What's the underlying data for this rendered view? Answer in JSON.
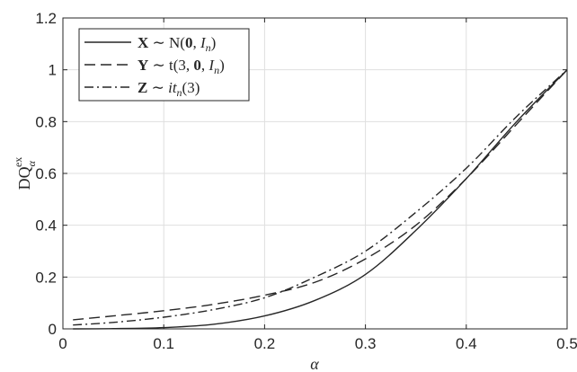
{
  "chart_data": {
    "type": "line",
    "xlabel": "α",
    "ylabel": "DQ",
    "ylabel_sub": "α",
    "ylabel_sup": "ex",
    "xlim": [
      0,
      0.5
    ],
    "ylim": [
      0,
      1.2
    ],
    "xticks": [
      0,
      0.1,
      0.2,
      0.3,
      0.4,
      0.5
    ],
    "xtick_labels": [
      "0",
      "0.1",
      "0.2",
      "0.3",
      "0.4",
      "0.5"
    ],
    "yticks": [
      0,
      0.2,
      0.4,
      0.6,
      0.8,
      1,
      1.2
    ],
    "ytick_labels": [
      "0",
      "0.2",
      "0.4",
      "0.6",
      "0.8",
      "1",
      "1.2"
    ],
    "grid": true,
    "legend_position": "top-left",
    "x": [
      0.01,
      0.05,
      0.1,
      0.15,
      0.2,
      0.25,
      0.3,
      0.35,
      0.4,
      0.45,
      0.5
    ],
    "series": [
      {
        "name": "X ~ N(0, I_n)",
        "style": "solid",
        "label_parts": [
          {
            "t": "X",
            "b": true
          },
          {
            "t": " ∼ N("
          },
          {
            "t": "0",
            "b": true
          },
          {
            "t": ", "
          },
          {
            "t": "I",
            "i": true
          },
          {
            "t": "n",
            "i": true,
            "sub": true
          },
          {
            "t": ")"
          }
        ],
        "values": [
          0.0,
          0.001,
          0.005,
          0.018,
          0.05,
          0.11,
          0.21,
          0.38,
          0.58,
          0.8,
          1.0
        ]
      },
      {
        "name": "Y ~ t(3, 0, I_n)",
        "style": "dashed",
        "label_parts": [
          {
            "t": "Y",
            "b": true
          },
          {
            "t": " ∼ t(3, "
          },
          {
            "t": "0",
            "b": true
          },
          {
            "t": ", "
          },
          {
            "t": "I",
            "i": true
          },
          {
            "t": "n",
            "i": true,
            "sub": true
          },
          {
            "t": ")"
          }
        ],
        "values": [
          0.035,
          0.05,
          0.07,
          0.095,
          0.13,
          0.18,
          0.27,
          0.4,
          0.58,
          0.79,
          1.0
        ]
      },
      {
        "name": "Z ~ it_n(3)",
        "style": "dashdot",
        "label_parts": [
          {
            "t": "Z",
            "b": true
          },
          {
            "t": " ∼ "
          },
          {
            "t": "it",
            "i": true
          },
          {
            "t": "n",
            "i": true,
            "sub": true
          },
          {
            "t": "(3)"
          }
        ],
        "values": [
          0.015,
          0.025,
          0.045,
          0.075,
          0.12,
          0.2,
          0.3,
          0.45,
          0.62,
          0.82,
          1.0
        ]
      }
    ]
  }
}
